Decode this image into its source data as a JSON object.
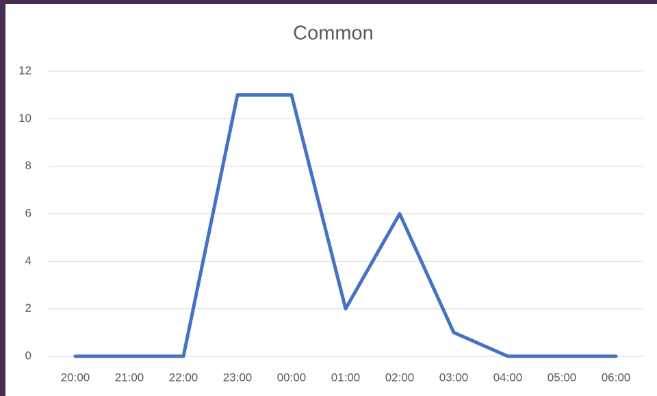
{
  "chart_data": {
    "type": "line",
    "title": "Common",
    "categories": [
      "20:00",
      "21:00",
      "22:00",
      "23:00",
      "00:00",
      "01:00",
      "02:00",
      "03:00",
      "04:00",
      "05:00",
      "06:00"
    ],
    "series": [
      {
        "name": "Common",
        "color": "#4472c4",
        "values": [
          0,
          0,
          0,
          11,
          11,
          2,
          6,
          1,
          0,
          0,
          0
        ]
      }
    ],
    "ylim": [
      0,
      12
    ],
    "yticks": [
      0,
      2,
      4,
      6,
      8,
      10,
      12
    ],
    "grid": true
  }
}
